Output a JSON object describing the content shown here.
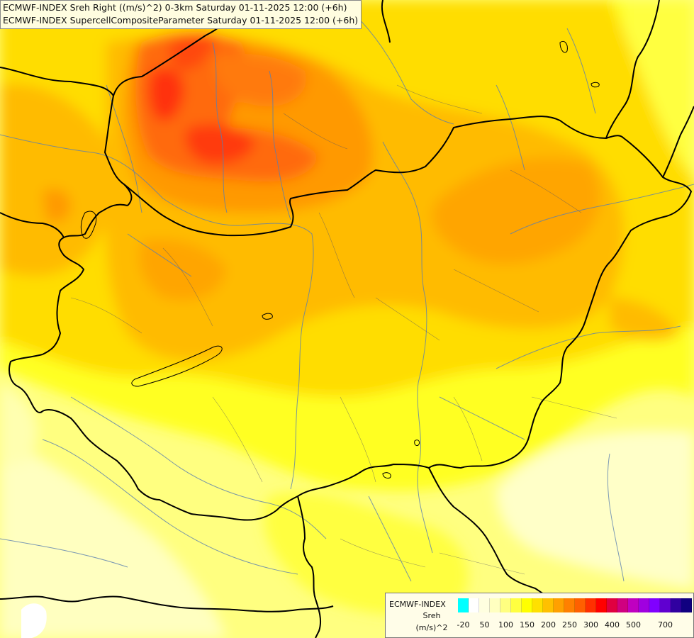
{
  "title": {
    "line1": "ECMWF-INDEX Sreh Right ((m/s)^2) 0-3km Saturday 01-11-2025 12:00 (+6h)",
    "line2": "ECMWF-INDEX SupercellCompositeParameter Saturday 01-11-2025 12:00 (+6h)"
  },
  "legend": {
    "model": "ECMWF-INDEX",
    "param": "Sreh",
    "unit": "(m/s)^2",
    "colors": [
      "#00ffff",
      "#ffffff",
      "#ffffe0",
      "#ffffc0",
      "#ffff80",
      "#ffff40",
      "#ffff00",
      "#ffe000",
      "#ffc000",
      "#ffa000",
      "#ff8000",
      "#ff6000",
      "#ff3000",
      "#ff0000",
      "#e00040",
      "#d00080",
      "#c000c0",
      "#a000e0",
      "#8000ff",
      "#6000d0",
      "#3000a0",
      "#100080"
    ],
    "ticks": [
      {
        "label": "-20",
        "index": 0.5
      },
      {
        "label": "50",
        "index": 2.5
      },
      {
        "label": "100",
        "index": 4.5
      },
      {
        "label": "150",
        "index": 6.5
      },
      {
        "label": "200",
        "index": 8.5
      },
      {
        "label": "250",
        "index": 10.5
      },
      {
        "label": "300",
        "index": 12.5
      },
      {
        "label": "400",
        "index": 14.5
      },
      {
        "label": "500",
        "index": 16.5
      },
      {
        "label": "700",
        "index": 19.5
      }
    ]
  },
  "palette": {
    "pale": "#ffffc8",
    "light": "#ffff90",
    "yellow": "#ffff20",
    "gold": "#ffdd00",
    "amber": "#ffbb00",
    "orange": "#ff9900",
    "deep-orange": "#ff6a10",
    "red-orange": "#ff3a10",
    "border": "#000000",
    "river": "#5a7fb0"
  }
}
